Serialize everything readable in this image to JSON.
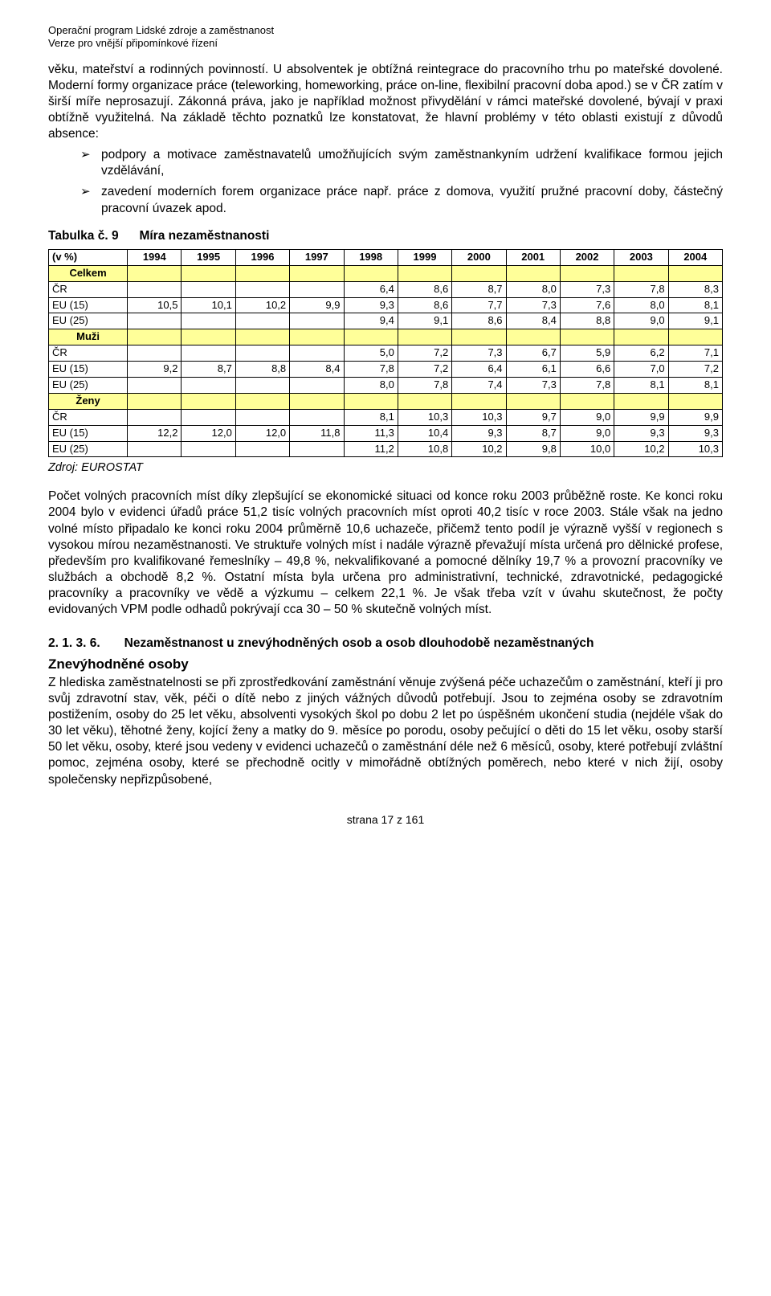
{
  "header": {
    "line1": "Operační program Lidské zdroje a zaměstnanost",
    "line2": "Verze pro vnější připomínkové řízení"
  },
  "para1": "věku, mateřství a rodinných povinností. U absolventek je obtížná reintegrace do pracovního trhu po mateřské dovolené. Moderní formy organizace práce (teleworking, homeworking, práce on-line, flexibilní pracovní doba apod.) se v ČR zatím v širší míře neprosazují. Zákonná práva, jako je například možnost přivydělání v rámci mateřské dovolené, bývají v praxi obtížně využitelná. Na základě těchto poznatků lze konstatovat, že hlavní problémy v této oblasti existují z důvodů absence:",
  "bullets": [
    "podpory a motivace zaměstnavatelů umožňujících svým zaměstnankyním udržení kvalifikace formou jejich vzdělávání,",
    "zavedení moderních forem organizace práce např. práce z domova, využití pružné pracovní doby, částečný pracovní úvazek apod."
  ],
  "table": {
    "title_label": "Tabulka č. 9",
    "title_text": "Míra nezaměstnanosti",
    "header_first": "(v %)",
    "years": [
      "1994",
      "1995",
      "1996",
      "1997",
      "1998",
      "1999",
      "2000",
      "2001",
      "2002",
      "2003",
      "2004"
    ],
    "highlight_bg": "#ffff99",
    "sections": [
      {
        "label": "Celkem",
        "highlight": true,
        "rows": [
          {
            "label": "ČR",
            "vals": [
              "",
              "",
              "",
              "",
              "6,4",
              "8,6",
              "8,7",
              "8,0",
              "7,3",
              "7,8",
              "8,3"
            ]
          },
          {
            "label": "EU (15)",
            "vals": [
              "10,5",
              "10,1",
              "10,2",
              "9,9",
              "9,3",
              "8,6",
              "7,7",
              "7,3",
              "7,6",
              "8,0",
              "8,1"
            ]
          },
          {
            "label": "EU (25)",
            "vals": [
              "",
              "",
              "",
              "",
              "9,4",
              "9,1",
              "8,6",
              "8,4",
              "8,8",
              "9,0",
              "9,1"
            ]
          }
        ]
      },
      {
        "label": "Muži",
        "highlight": true,
        "rows": [
          {
            "label": "ČR",
            "vals": [
              "",
              "",
              "",
              "",
              "5,0",
              "7,2",
              "7,3",
              "6,7",
              "5,9",
              "6,2",
              "7,1"
            ]
          },
          {
            "label": "EU (15)",
            "vals": [
              "9,2",
              "8,7",
              "8,8",
              "8,4",
              "7,8",
              "7,2",
              "6,4",
              "6,1",
              "6,6",
              "7,0",
              "7,2"
            ]
          },
          {
            "label": "EU (25)",
            "vals": [
              "",
              "",
              "",
              "",
              "8,0",
              "7,8",
              "7,4",
              "7,3",
              "7,8",
              "8,1",
              "8,1"
            ]
          }
        ]
      },
      {
        "label": "Ženy",
        "highlight": true,
        "rows": [
          {
            "label": "ČR",
            "vals": [
              "",
              "",
              "",
              "",
              "8,1",
              "10,3",
              "10,3",
              "9,7",
              "9,0",
              "9,9",
              "9,9"
            ]
          },
          {
            "label": "EU (15)",
            "vals": [
              "12,2",
              "12,0",
              "12,0",
              "11,8",
              "11,3",
              "10,4",
              "9,3",
              "8,7",
              "9,0",
              "9,3",
              "9,3"
            ]
          },
          {
            "label": "EU (25)",
            "vals": [
              "",
              "",
              "",
              "",
              "11,2",
              "10,8",
              "10,2",
              "9,8",
              "10,0",
              "10,2",
              "10,3"
            ]
          }
        ]
      }
    ],
    "source": "Zdroj: EUROSTAT"
  },
  "para2": "Počet volných pracovních míst díky zlepšující se ekonomické situaci od konce roku 2003 průběžně roste. Ke konci roku 2004 bylo v evidenci úřadů práce 51,2 tisíc volných pracovních míst oproti 40,2 tisíc v roce 2003. Stále však na jedno volné místo připadalo ke konci roku 2004 průměrně 10,6 uchazeče, přičemž tento podíl je výrazně vyšší v regionech s vysokou mírou nezaměstnanosti. Ve struktuře volných míst i nadále výrazně převažují místa určená pro dělnické profese, především pro kvalifikované řemeslníky – 49,8 %, nekvalifikované a pomocné dělníky 19,7 % a provozní pracovníky ve službách a obchodě 8,2 %. Ostatní místa byla určena pro administrativní, technické, zdravotnické, pedagogické pracovníky a pracovníky ve vědě a výzkumu – celkem 22,1 %. Je však třeba vzít v úvahu skutečnost, že počty evidovaných VPM podle odhadů pokrývají cca 30 – 50 % skutečně volných míst.",
  "section": {
    "num": "2. 1. 3. 6.",
    "title": "Nezaměstnanost u znevýhodněných osob a osob dlouhodobě nezaměstnaných"
  },
  "subhead": "Znevýhodněné osoby",
  "para3": "Z hlediska zaměstnatelnosti se při zprostředkování zaměstnání věnuje zvýšená péče uchazečům o zaměstnání, kteří ji pro svůj zdravotní stav, věk, péči o dítě nebo z jiných vážných důvodů potřebují. Jsou to zejména osoby se zdravotním postižením, osoby do 25 let věku, absolventi vysokých škol po dobu 2 let po úspěšném ukončení studia (nejdéle však do 30 let věku), těhotné ženy, kojící ženy a matky do 9. měsíce po porodu, osoby pečující o děti do 15 let věku, osoby starší 50 let věku, osoby, které jsou vedeny v evidenci uchazečů o zaměstnání déle než 6 měsíců, osoby, které potřebují zvláštní pomoc, zejména osoby, které se přechodně ocitly v mimořádně obtížných poměrech, nebo které v nich žijí, osoby společensky nepřizpůsobené,",
  "footer": "strana 17 z 161"
}
